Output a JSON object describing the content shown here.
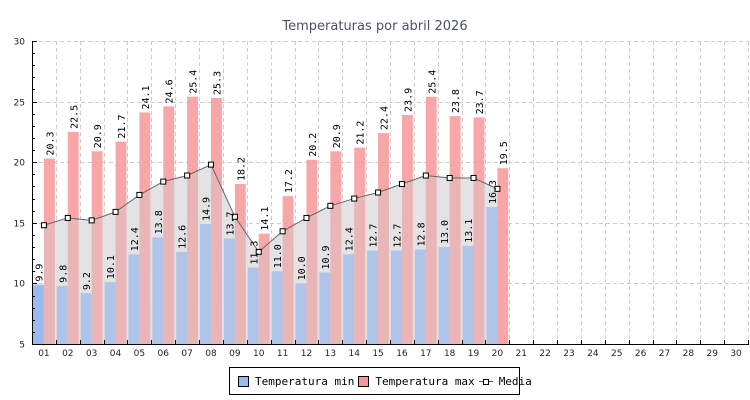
{
  "chart_data": {
    "type": "bar",
    "title": "Temperaturas por abril 2026",
    "xlabel": "",
    "ylabel": "",
    "ylim": [
      5,
      30
    ],
    "yticks": [
      5,
      10,
      15,
      20,
      25,
      30
    ],
    "grid": true,
    "legend_position": "bottom-center",
    "categories": [
      "01",
      "02",
      "03",
      "04",
      "05",
      "06",
      "07",
      "08",
      "09",
      "10",
      "11",
      "12",
      "13",
      "14",
      "15",
      "16",
      "17",
      "18",
      "19",
      "20",
      "21",
      "22",
      "23",
      "24",
      "25",
      "26",
      "27",
      "28",
      "29",
      "30"
    ],
    "series": [
      {
        "name": "Temperatura min",
        "type": "bar",
        "color": "#99bbf0",
        "values": [
          9.9,
          9.8,
          9.2,
          10.1,
          12.4,
          13.8,
          12.6,
          14.9,
          13.7,
          11.3,
          11.0,
          10.0,
          10.9,
          12.4,
          12.7,
          12.7,
          12.8,
          13.0,
          13.1,
          16.3,
          null,
          null,
          null,
          null,
          null,
          null,
          null,
          null,
          null,
          null
        ]
      },
      {
        "name": "Temperatura max",
        "type": "bar",
        "color": "#f79698",
        "values": [
          20.3,
          22.5,
          20.9,
          21.7,
          24.1,
          24.6,
          25.4,
          25.3,
          18.2,
          14.1,
          17.2,
          20.2,
          20.9,
          21.2,
          22.4,
          23.9,
          25.4,
          23.8,
          23.7,
          19.5,
          null,
          null,
          null,
          null,
          null,
          null,
          null,
          null,
          null,
          null
        ]
      },
      {
        "name": "Media",
        "type": "line",
        "color": "#666666",
        "values": [
          14.8,
          15.4,
          15.2,
          15.9,
          17.3,
          18.4,
          18.9,
          19.8,
          15.5,
          12.6,
          14.3,
          15.4,
          16.4,
          17.0,
          17.5,
          18.2,
          18.9,
          18.7,
          18.7,
          17.8,
          null,
          null,
          null,
          null,
          null,
          null,
          null,
          null,
          null,
          null
        ]
      }
    ]
  },
  "legend": {
    "min_label": "Temperatura min",
    "max_label": "Temperatura max",
    "media_label": "Media"
  }
}
